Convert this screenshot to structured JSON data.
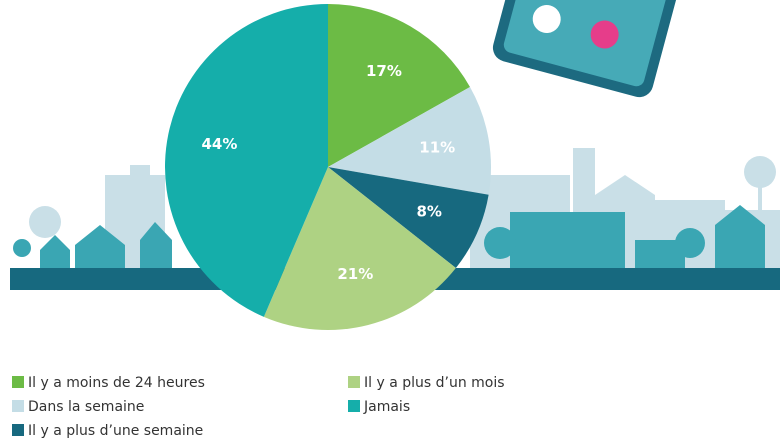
{
  "chart_data": {
    "type": "pie",
    "categories": [
      "Il y a moins de 24 heures",
      "Dans la semaine",
      "Il y a plus d’une semaine",
      "Il y a plus d’un mois",
      "Jamais"
    ],
    "values": [
      17,
      11,
      8,
      21,
      44
    ],
    "value_labels": [
      "17%",
      "11%",
      "8%",
      "21%",
      "44%"
    ],
    "colors": [
      "#6cbb45",
      "#c4dde6",
      "#17697f",
      "#aed283",
      "#15aeaa"
    ]
  }
}
